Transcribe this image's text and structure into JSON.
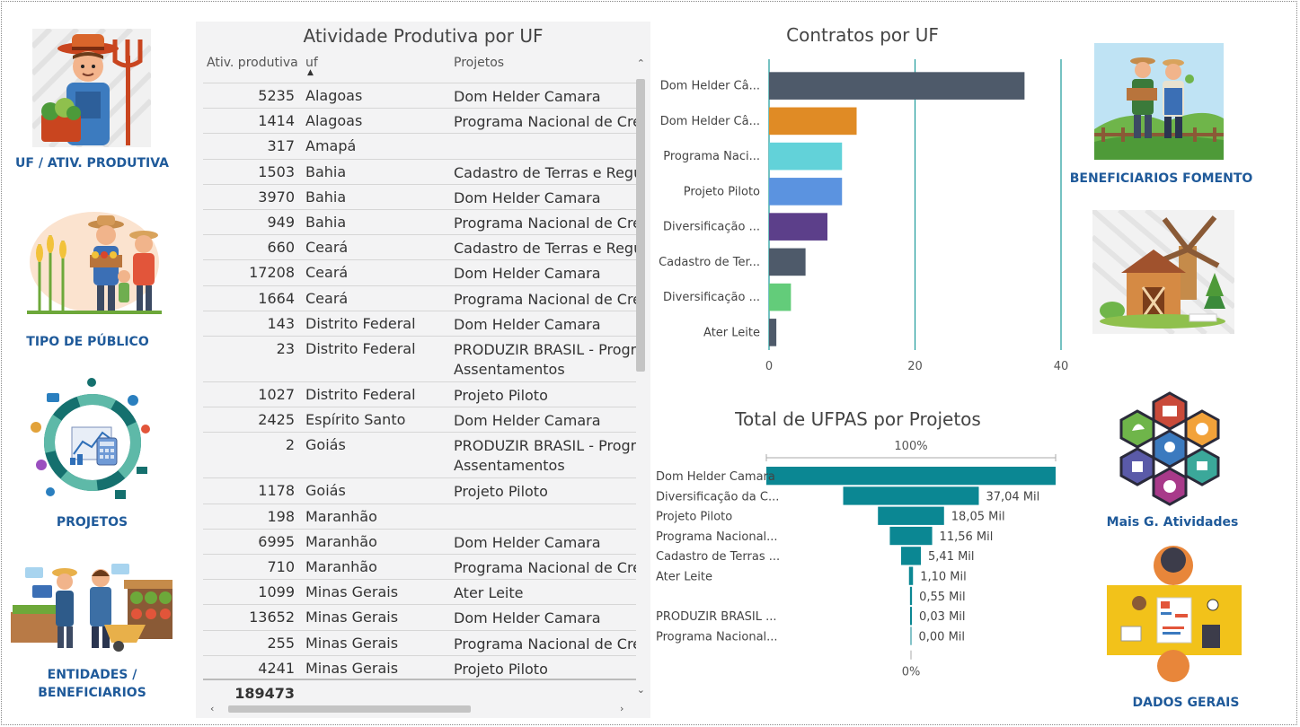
{
  "nav": [
    {
      "label_lines": [
        "UF / ATIV. PRODUTIVA"
      ],
      "icon": "farmer-icon"
    },
    {
      "label_lines": [
        "TIPO DE PÚBLICO"
      ],
      "icon": "farm-family-icon"
    },
    {
      "label_lines": [
        "PROJETOS"
      ],
      "icon": "project-chart-icon"
    },
    {
      "label_lines": [
        "ENTIDADES /",
        "BENEFICIARIOS"
      ],
      "icon": "market-stall-icon"
    }
  ],
  "right_nav": [
    {
      "label": "BENEFICIARIOS FOMENTO",
      "icon": "farmer-couple-icon"
    },
    {
      "label": "Mais G. Atividades",
      "icon": "hexagon-activities-icon"
    },
    {
      "label": "DADOS GERAIS",
      "icon": "meeting-table-icon"
    }
  ],
  "table": {
    "title": "Atividade Produtiva por UF",
    "headers": [
      "Ativ. produtiva",
      "uf",
      "Projetos"
    ],
    "rows": [
      {
        "value": "5235",
        "uf": "Alagoas",
        "projeto": [
          "Dom Helder Camara"
        ]
      },
      {
        "value": "1414",
        "uf": "Alagoas",
        "projeto": [
          "Programa Nacional de Crédi"
        ]
      },
      {
        "value": "317",
        "uf": "Amapá",
        "projeto": [
          ""
        ]
      },
      {
        "value": "1503",
        "uf": "Bahia",
        "projeto": [
          "Cadastro de Terras e Regula"
        ]
      },
      {
        "value": "3970",
        "uf": "Bahia",
        "projeto": [
          "Dom Helder Camara"
        ]
      },
      {
        "value": "949",
        "uf": "Bahia",
        "projeto": [
          "Programa Nacional de Crédi"
        ]
      },
      {
        "value": "660",
        "uf": "Ceará",
        "projeto": [
          "Cadastro de Terras e Regula"
        ]
      },
      {
        "value": "17208",
        "uf": "Ceará",
        "projeto": [
          "Dom Helder Camara"
        ]
      },
      {
        "value": "1664",
        "uf": "Ceará",
        "projeto": [
          "Programa Nacional de Crédi"
        ]
      },
      {
        "value": "143",
        "uf": "Distrito Federal",
        "projeto": [
          "Dom Helder Camara"
        ]
      },
      {
        "value": "23",
        "uf": "Distrito Federal",
        "projeto": [
          "PRODUZIR BRASIL - Prograr",
          "Assentamentos"
        ]
      },
      {
        "value": "1027",
        "uf": "Distrito Federal",
        "projeto": [
          "Projeto Piloto"
        ]
      },
      {
        "value": "2425",
        "uf": "Espírito Santo",
        "projeto": [
          "Dom Helder Camara"
        ]
      },
      {
        "value": "2",
        "uf": "Goiás",
        "projeto": [
          "PRODUZIR BRASIL - Prograr",
          "Assentamentos"
        ]
      },
      {
        "value": "1178",
        "uf": "Goiás",
        "projeto": [
          "Projeto Piloto"
        ]
      },
      {
        "value": "198",
        "uf": "Maranhão",
        "projeto": [
          ""
        ]
      },
      {
        "value": "6995",
        "uf": "Maranhão",
        "projeto": [
          "Dom Helder Camara"
        ]
      },
      {
        "value": "710",
        "uf": "Maranhão",
        "projeto": [
          "Programa Nacional de Crédi"
        ]
      },
      {
        "value": "1099",
        "uf": "Minas Gerais",
        "projeto": [
          "Ater Leite"
        ]
      },
      {
        "value": "13652",
        "uf": "Minas Gerais",
        "projeto": [
          "Dom Helder Camara"
        ]
      },
      {
        "value": "255",
        "uf": "Minas Gerais",
        "projeto": [
          "Programa Nacional de Crédi"
        ]
      },
      {
        "value": "4241",
        "uf": "Minas Gerais",
        "projeto": [
          "Projeto Piloto"
        ]
      }
    ],
    "total": "189473"
  },
  "chart_data": [
    {
      "type": "bar",
      "orientation": "horizontal",
      "title": "Contratos por UF",
      "categories": [
        "Dom Helder Câ...",
        "Dom Helder Câ...",
        "Programa Naci...",
        "Projeto Piloto",
        "Diversificação ...",
        "Cadastro de Ter...",
        "Diversificação ...",
        "Ater Leite"
      ],
      "values": [
        35,
        12,
        10,
        10,
        8,
        5,
        3,
        1
      ],
      "colors": [
        "#4e5a6a",
        "#e08b25",
        "#62d2d9",
        "#5b93e0",
        "#5c3f8a",
        "#4e5a6a",
        "#63cc7a",
        "#4e5a6a"
      ],
      "xlim": [
        0,
        40
      ],
      "xticks": [
        "0",
        "20",
        "40"
      ],
      "grid": true
    },
    {
      "type": "funnel",
      "title": "Total de UFPAS por Projetos",
      "top_label": "100%",
      "bottom_label": "0%",
      "categories": [
        "Dom Helder Camara",
        "Diversificação da C...",
        "Projeto Piloto",
        "Programa Nacional...",
        "Cadastro de Terras ...",
        "Ater Leite",
        "",
        "PRODUZIR BRASIL ...",
        "Programa Nacional..."
      ],
      "values": [
        79.0,
        37.04,
        18.05,
        11.56,
        5.41,
        1.1,
        0.55,
        0.03,
        0.0
      ],
      "value_labels": [
        "",
        "37,04 Mil",
        "18,05 Mil",
        "11,56 Mil",
        "5,41 Mil",
        "1,10 Mil",
        "0,55 Mil",
        "0,03 Mil",
        "0,00 Mil"
      ],
      "color": "#0b8793"
    }
  ]
}
